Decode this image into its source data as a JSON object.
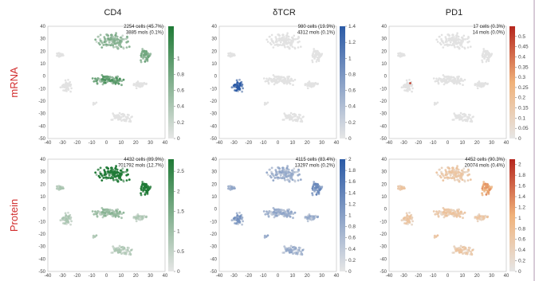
{
  "row_labels": [
    "mRNA",
    "Protein"
  ],
  "column_titles": [
    "CD4",
    "δTCR",
    "PD1"
  ],
  "palettes": {
    "green": [
      "#e6e6e6",
      "#1f7a36"
    ],
    "blue": [
      "#e6e6e6",
      "#2b5aa6"
    ],
    "orange": [
      "#e6e6e6",
      "#f0b27a",
      "#b5261e"
    ]
  },
  "chart_data": [
    {
      "type": "scatter",
      "title": "CD4",
      "row": "mRNA",
      "stats": [
        "2254 cells (45.7%)",
        "3885 mols (0.1%)"
      ],
      "xlim": [
        -40,
        40
      ],
      "ylim": [
        -50,
        40
      ],
      "xticks": [
        "-40",
        "-30",
        "-20",
        "-10",
        "0",
        "10",
        "20",
        "30",
        "40"
      ],
      "yticks": [
        "40",
        "30",
        "20",
        "10",
        "0",
        "-10",
        "-20",
        "-30",
        "-40",
        "-50"
      ],
      "colorbar": {
        "palette": "green",
        "range": [
          0,
          1.4
        ],
        "ticks": [
          "1",
          "0.8",
          "0.6",
          "0.4",
          "0.2",
          "0"
        ],
        "tick_values": [
          1,
          0.8,
          0.6,
          0.4,
          0.2,
          0
        ]
      },
      "intensity": {
        "default": 0.02,
        "regions": [
          [
            "upper",
            0.35
          ],
          [
            "right",
            0.4
          ],
          [
            "lower-left",
            0.5
          ]
        ]
      }
    },
    {
      "type": "scatter",
      "title": "δTCR",
      "row": "mRNA",
      "stats": [
        "980 cells (19.9%)",
        "4312 mols (0.1%)"
      ],
      "xlim": [
        -40,
        40
      ],
      "ylim": [
        -50,
        40
      ],
      "xticks": [
        "-40",
        "-30",
        "-20",
        "-10",
        "0",
        "10",
        "20",
        "30",
        "40"
      ],
      "yticks": [
        "40",
        "30",
        "20",
        "10",
        "0",
        "-10",
        "-20",
        "-30",
        "-40",
        "-50"
      ],
      "colorbar": {
        "palette": "blue",
        "range": [
          0,
          1.4
        ],
        "ticks": [
          "1.4",
          "1.2",
          "1",
          "0.8",
          "0.6",
          "0.4",
          "0.2",
          "0"
        ],
        "tick_values": [
          1.4,
          1.2,
          1,
          0.8,
          0.6,
          0.4,
          0.2,
          0
        ]
      },
      "intensity": {
        "default": 0.02,
        "regions": [
          [
            "left-middle",
            0.75
          ]
        ]
      }
    },
    {
      "type": "scatter",
      "title": "PD1",
      "row": "mRNA",
      "stats": [
        "17 cells (0.3%)",
        "14 mols (0.0%)"
      ],
      "xlim": [
        -40,
        40
      ],
      "ylim": [
        -50,
        40
      ],
      "xticks": [
        "-40",
        "-30",
        "-20",
        "-10",
        "0",
        "10",
        "20",
        "30",
        "40"
      ],
      "yticks": [
        "40",
        "30",
        "20",
        "10",
        "0",
        "-10",
        "-20",
        "-30",
        "-40",
        "-50"
      ],
      "colorbar": {
        "palette": "orange",
        "range": [
          0,
          0.55
        ],
        "ticks": [
          "0.5",
          "0.45",
          "0.4",
          "0.35",
          "0.3",
          "0.25",
          "0.2",
          "0.15",
          "0.1",
          "0.05",
          "0"
        ],
        "tick_values": [
          0.5,
          0.45,
          0.4,
          0.35,
          0.3,
          0.25,
          0.2,
          0.15,
          0.1,
          0.05,
          0
        ]
      },
      "intensity": {
        "default": 0.01,
        "regions": []
      }
    },
    {
      "type": "scatter",
      "title": "CD4",
      "row": "Protein",
      "stats": [
        "4432 cells (89.9%)",
        "701792 mols (12.7%)"
      ],
      "xlim": [
        -40,
        40
      ],
      "ylim": [
        -50,
        40
      ],
      "xticks": [
        "-40",
        "-30",
        "-20",
        "-10",
        "0",
        "10",
        "20",
        "30",
        "40"
      ],
      "yticks": [
        "40",
        "30",
        "20",
        "10",
        "0",
        "-10",
        "-20",
        "-30",
        "-40",
        "-50"
      ],
      "colorbar": {
        "palette": "green",
        "range": [
          0,
          2.8
        ],
        "ticks": [
          "2.5",
          "2",
          "1.5",
          "1",
          "0.5",
          "0"
        ],
        "tick_values": [
          2.5,
          2,
          1.5,
          1,
          0.5,
          0
        ]
      },
      "intensity": {
        "default": 0.2,
        "regions": [
          [
            "upper",
            0.9
          ],
          [
            "right",
            0.85
          ],
          [
            "lower-left",
            0.3
          ]
        ]
      }
    },
    {
      "type": "scatter",
      "title": "δTCR",
      "row": "Protein",
      "stats": [
        "4115 cells (83.4%)",
        "13297 mols (0.2%)"
      ],
      "xlim": [
        -40,
        40
      ],
      "ylim": [
        -50,
        40
      ],
      "xticks": [
        "-40",
        "-30",
        "-20",
        "-10",
        "0",
        "10",
        "20",
        "30",
        "40"
      ],
      "yticks": [
        "40",
        "30",
        "20",
        "10",
        "0",
        "-10",
        "-20",
        "-30",
        "-40",
        "-50"
      ],
      "colorbar": {
        "palette": "blue",
        "range": [
          0,
          2
        ],
        "ticks": [
          "2",
          "1.8",
          "1.6",
          "1.4",
          "1.2",
          "1",
          "0.8",
          "0.6",
          "0.4",
          "0.2",
          "0"
        ],
        "tick_values": [
          2,
          1.8,
          1.6,
          1.4,
          1.2,
          1,
          0.8,
          0.6,
          0.4,
          0.2,
          0
        ]
      },
      "intensity": {
        "default": 0.3,
        "regions": [
          [
            "left-middle",
            0.4
          ],
          [
            "right",
            0.45
          ]
        ]
      }
    },
    {
      "type": "scatter",
      "title": "PD1",
      "row": "Protein",
      "stats": [
        "4452 cells (90.3%)",
        "20074 mols (0.4%)"
      ],
      "xlim": [
        -40,
        40
      ],
      "ylim": [
        -50,
        40
      ],
      "xticks": [
        "-40",
        "-30",
        "-20",
        "-10",
        "0",
        "10",
        "20",
        "30",
        "40"
      ],
      "yticks": [
        "40",
        "30",
        "20",
        "10",
        "0",
        "-10",
        "-20",
        "-30",
        "-40",
        "-50"
      ],
      "colorbar": {
        "palette": "orange",
        "range": [
          0,
          2.1
        ],
        "ticks": [
          "2",
          "1.8",
          "1.6",
          "1.4",
          "1.2",
          "1",
          "0.8",
          "0.6",
          "0.4",
          "0.2",
          "0"
        ],
        "tick_values": [
          2,
          1.8,
          1.6,
          1.4,
          1.2,
          1,
          0.8,
          0.6,
          0.4,
          0.2,
          0
        ]
      },
      "intensity": {
        "default": 0.22,
        "regions": [
          [
            "right",
            0.4
          ]
        ]
      }
    }
  ]
}
